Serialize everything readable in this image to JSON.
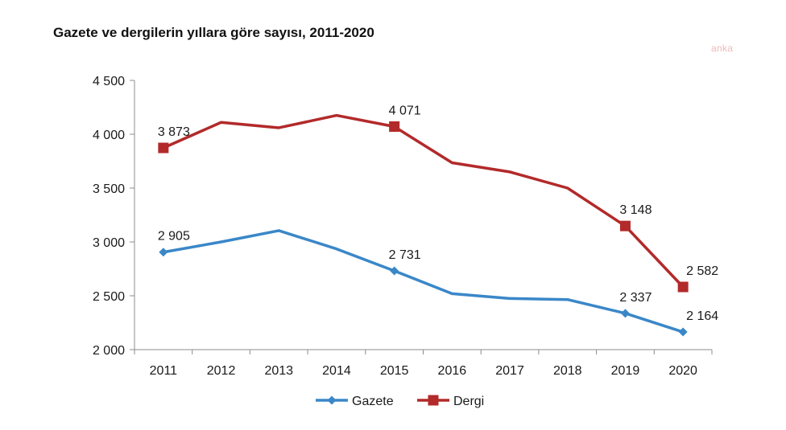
{
  "title": "Gazete ve dergilerin yıllara göre sayısı, 2011-2020",
  "watermark": "anka",
  "chart_data": {
    "type": "line",
    "categories": [
      "2011",
      "2012",
      "2013",
      "2014",
      "2015",
      "2016",
      "2017",
      "2018",
      "2019",
      "2020"
    ],
    "ylim": [
      2000,
      4500
    ],
    "yticks": [
      2000,
      2500,
      3000,
      3500,
      4000,
      4500
    ],
    "ytick_labels": [
      "2 000",
      "2 500",
      "3 000",
      "3 500",
      "4 000",
      "4 500"
    ],
    "grid": false,
    "legend_position": "bottom",
    "series": [
      {
        "name": "Gazete",
        "color": "#3a87c8",
        "marker": "diamond",
        "values": [
          2905,
          3000,
          3105,
          2935,
          2731,
          2520,
          2475,
          2465,
          2337,
          2164
        ],
        "data_labels": [
          "2 905",
          "",
          "",
          "",
          "2 731",
          "",
          "",
          "",
          "2 337",
          "2 164"
        ]
      },
      {
        "name": "Dergi",
        "color": "#b22a2a",
        "marker": "square",
        "values": [
          3873,
          4110,
          4060,
          4175,
          4071,
          3735,
          3650,
          3500,
          3148,
          2582
        ],
        "data_labels": [
          "3 873",
          "",
          "",
          "",
          "4 071",
          "",
          "",
          "",
          "3 148",
          "2 582"
        ]
      }
    ]
  }
}
